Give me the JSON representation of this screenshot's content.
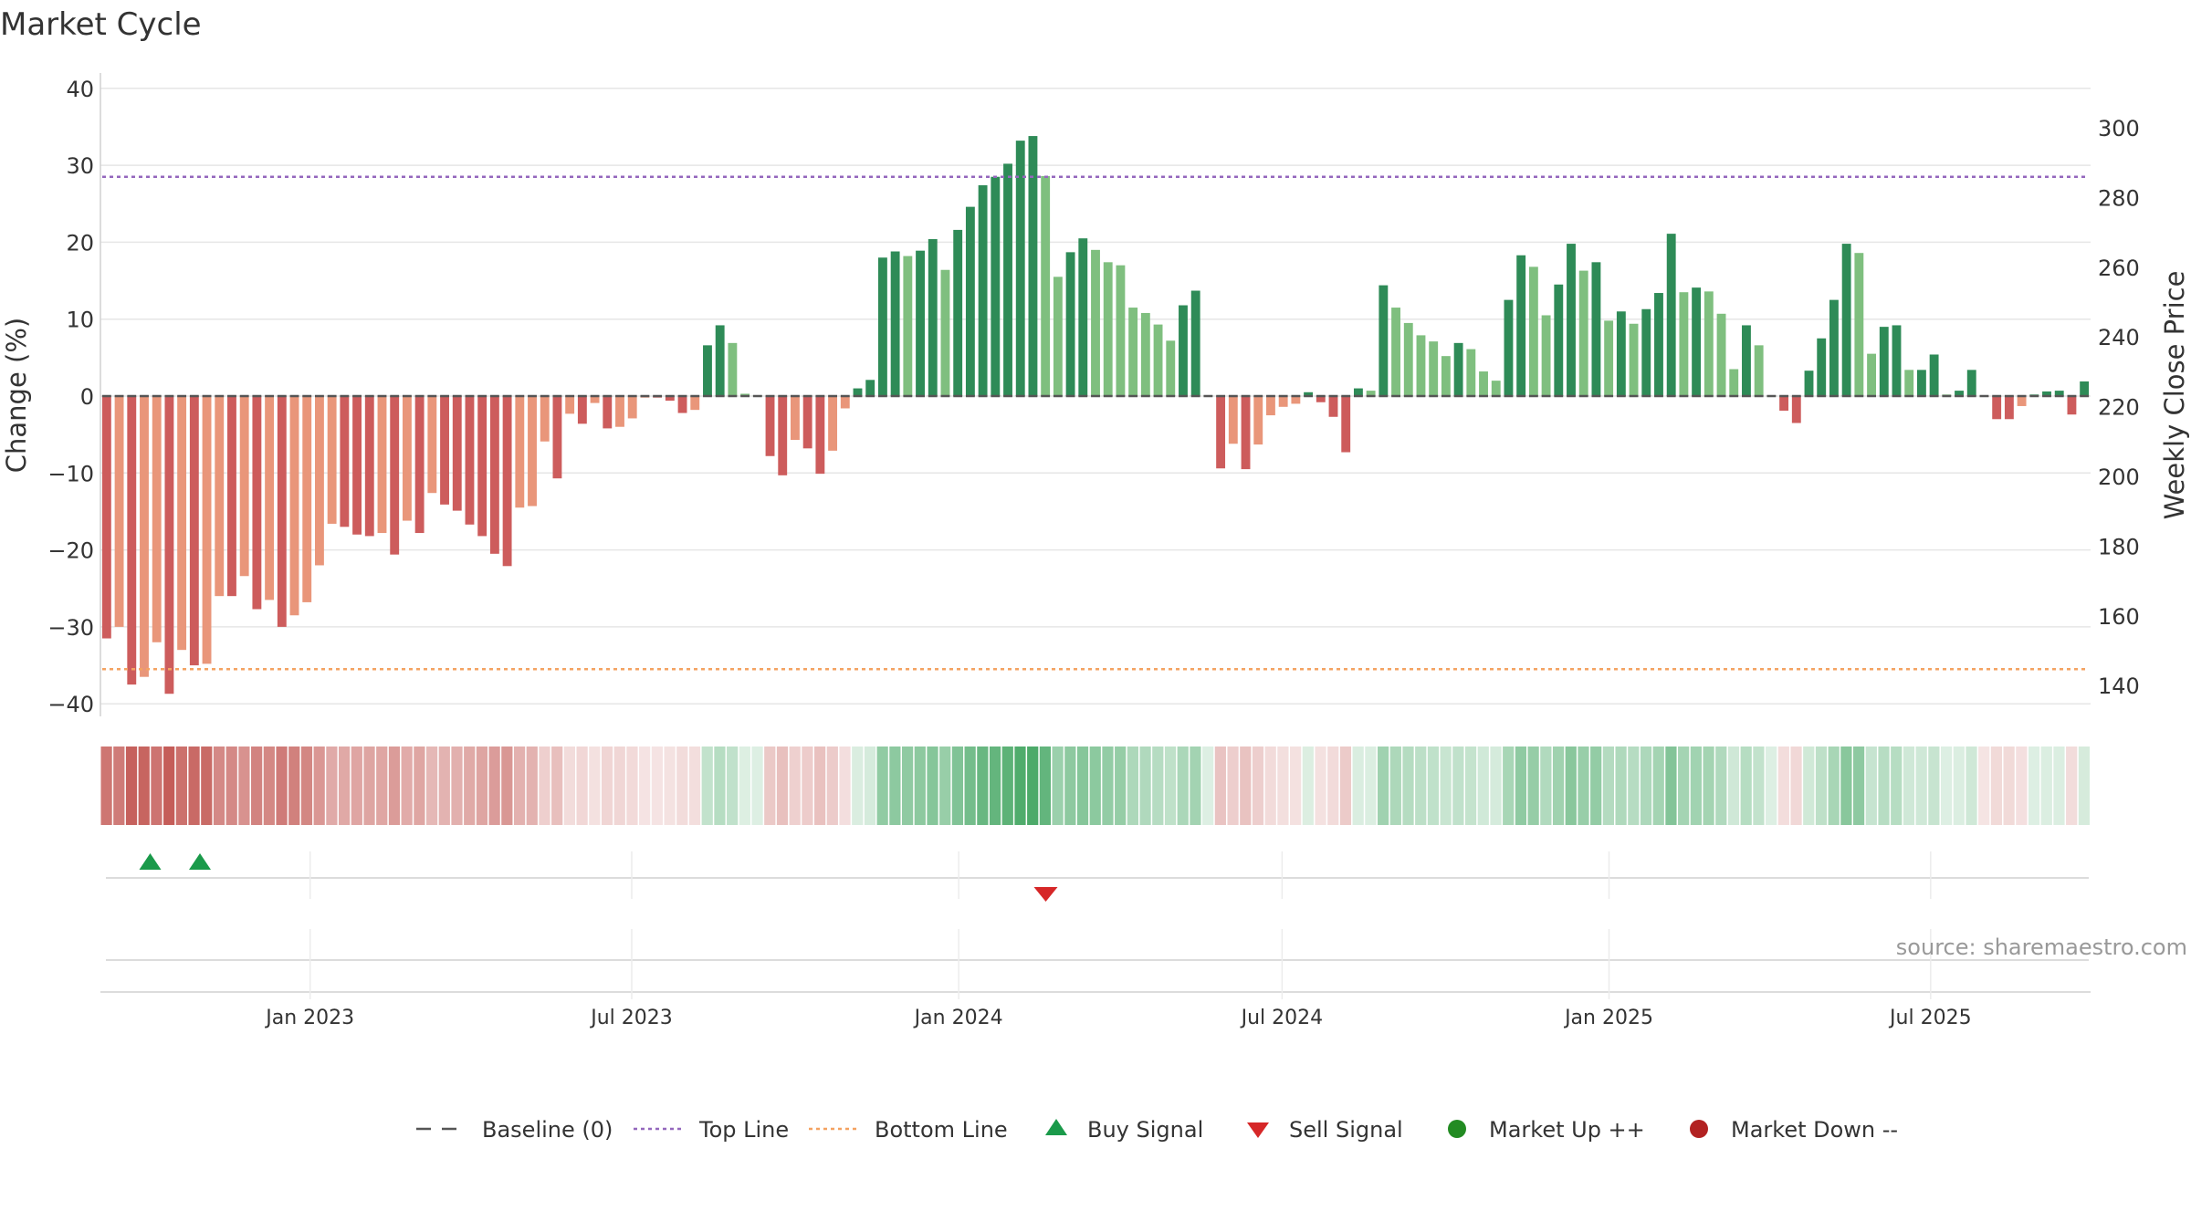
{
  "chart_data": {
    "type": "bar",
    "title": "Market Cycle",
    "ylabel": "Change (%)",
    "y2label": "Weekly Close Price",
    "ylim": [
      -42,
      42
    ],
    "y2lim": [
      132,
      317
    ],
    "yticks": [
      40,
      30,
      20,
      10,
      0,
      -10,
      -20,
      -30,
      -40
    ],
    "ytick_labels": [
      "40",
      "30",
      "20",
      "10",
      "0",
      "−10",
      "−20",
      "−30",
      "−40"
    ],
    "y2ticks": [
      300,
      280,
      260,
      240,
      220,
      200,
      180,
      160,
      140
    ],
    "y2tick_labels": [
      "300",
      "280",
      "260",
      "240",
      "220",
      "200",
      "180",
      "160",
      "140"
    ],
    "top_line": 28.5,
    "bottom_line": -35.5,
    "x_start": "2022-09-05",
    "x_end": "2025-09-29",
    "xticks": [
      "2023-01-01",
      "2023-07-01",
      "2024-01-01",
      "2024-07-01",
      "2025-01-01",
      "2025-07-01"
    ],
    "xtick_labels": [
      "Jan 2023",
      "Jul 2023",
      "Jan 2024",
      "Jul 2024",
      "Jan 2025",
      "Jul 2025"
    ],
    "values": [
      -31.5,
      -30.0,
      -37.5,
      -36.5,
      -32.0,
      -38.7,
      -33.0,
      -35.0,
      -34.8,
      -26.0,
      -26.0,
      -23.4,
      -27.7,
      -26.5,
      -30.0,
      -28.5,
      -26.8,
      -22.0,
      -16.6,
      -17.0,
      -18.0,
      -18.2,
      -17.8,
      -20.6,
      -16.2,
      -17.8,
      -12.6,
      -14.1,
      -14.9,
      -16.7,
      -18.2,
      -20.5,
      -22.1,
      -14.5,
      -14.3,
      -5.9,
      -10.7,
      -2.3,
      -3.6,
      -0.9,
      -4.2,
      -4.0,
      -2.9,
      -0.2,
      -0.2,
      -0.6,
      -2.2,
      -1.8,
      6.6,
      9.2,
      6.9,
      0.3,
      0.1,
      -7.8,
      -10.3,
      -5.7,
      -6.8,
      -10.1,
      -7.1,
      -1.6,
      1.0,
      2.1,
      18.0,
      18.8,
      18.2,
      18.9,
      20.4,
      16.4,
      21.6,
      24.6,
      27.4,
      28.5,
      30.2,
      33.2,
      33.8,
      28.6,
      15.5,
      18.7,
      20.5,
      19.0,
      17.4,
      17.0,
      11.5,
      10.8,
      9.3,
      7.2,
      11.8,
      13.7,
      0.1,
      -9.4,
      -6.2,
      -9.5,
      -6.3,
      -2.5,
      -1.4,
      -1.0,
      0.5,
      -0.8,
      -2.7,
      -7.3,
      1.0,
      0.7,
      14.4,
      11.5,
      9.5,
      7.9,
      7.1,
      5.2,
      6.9,
      6.1,
      3.2,
      2.0,
      12.5,
      18.3,
      16.8,
      10.5,
      14.5,
      19.8,
      16.3,
      17.4,
      9.8,
      11.0,
      9.4,
      11.3,
      13.4,
      21.1,
      13.5,
      14.1,
      13.6,
      10.7,
      3.5,
      9.2,
      6.6,
      0.1,
      -1.9,
      -3.5,
      3.3,
      7.5,
      12.5,
      19.8,
      18.6,
      5.5,
      9.0,
      9.2,
      3.4,
      3.4,
      5.4,
      0.2,
      0.7,
      3.4,
      -0.1,
      -3.0,
      -3.0,
      -1.3,
      0.2,
      0.6,
      0.7,
      -2.4,
      1.9
    ],
    "buy_signals": [
      "2022-10-03",
      "2022-10-31"
    ],
    "sell_signals": [
      "2024-02-19"
    ],
    "legend": [
      {
        "label": "Baseline (0)",
        "symbol": "dash",
        "color": "#555555"
      },
      {
        "label": "Top Line",
        "symbol": "dotted",
        "color": "#9467bd"
      },
      {
        "label": "Bottom Line",
        "symbol": "dotted",
        "color": "#f4a261"
      },
      {
        "label": "Buy Signal",
        "symbol": "triangle-up",
        "color": "#1a9a4a"
      },
      {
        "label": "Sell Signal",
        "symbol": "triangle-down",
        "color": "#d62728"
      },
      {
        "label": "Market Up ++",
        "symbol": "circle",
        "color": "#228b22"
      },
      {
        "label": "Market Down --",
        "symbol": "circle",
        "color": "#b22222"
      }
    ],
    "legend_position": "bottom-center",
    "colors": {
      "strong_up": "#2e8b57",
      "weak_up": "#7fbf7f",
      "strong_down": "#cd5c5c",
      "weak_down": "#e9967a",
      "top_line": "#9467bd",
      "bottom_line": "#f4a261",
      "grid": "#e6e6e6"
    },
    "source": "source: sharemaestro.com"
  }
}
